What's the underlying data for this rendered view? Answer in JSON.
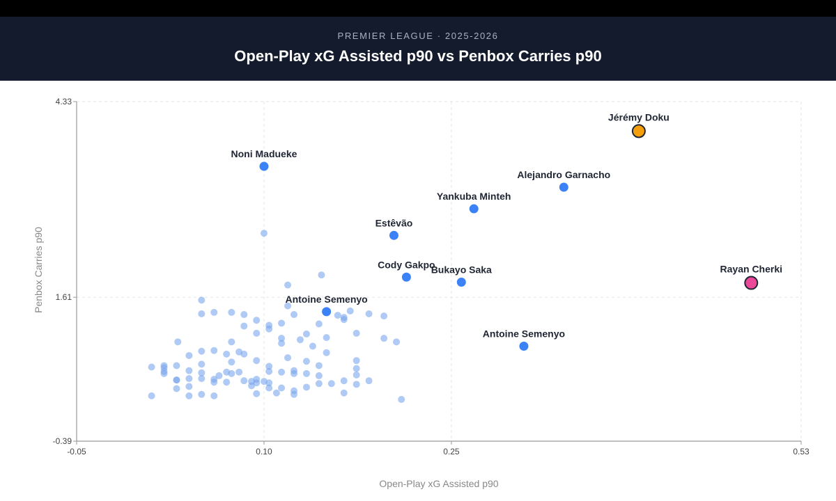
{
  "header": {
    "subtitle": "PREMIER LEAGUE · 2025-2026",
    "title": "Open-Play xG Assisted p90 vs Penbox Carries p90"
  },
  "chart_data": {
    "type": "scatter",
    "title": "Open-Play xG Assisted p90 vs Penbox Carries p90",
    "subtitle": "PREMIER LEAGUE · 2025-2026",
    "xlabel": "Open-Play xG Assisted p90",
    "ylabel": "Penbox Carries p90",
    "xlim": [
      -0.05,
      0.53
    ],
    "ylim": [
      -0.39,
      4.33
    ],
    "xticks": [
      -0.05,
      0.1,
      0.25,
      0.53
    ],
    "xtick_labels": [
      "-0.05",
      "0.10",
      "0.25",
      "0.53"
    ],
    "yticks": [
      -0.39,
      1.61,
      4.33
    ],
    "ytick_labels": [
      "-0.39",
      "1.61",
      "4.33"
    ],
    "grid": true,
    "colors": {
      "background_point": "#7aa7ec",
      "highlight_point": "#3b82f6",
      "doku": "#f59e0b",
      "cherki": "#ec4899",
      "grid": "#e6e6e6",
      "axis": "#999999"
    },
    "highlighted": [
      {
        "name": "Jérémy Doku",
        "x": 0.4,
        "y": 3.92,
        "color": "#f59e0b",
        "outlined": true
      },
      {
        "name": "Noni Madueke",
        "x": 0.1,
        "y": 3.43
      },
      {
        "name": "Alejandro Garnacho",
        "x": 0.34,
        "y": 3.14
      },
      {
        "name": "Yankuba Minteh",
        "x": 0.268,
        "y": 2.84
      },
      {
        "name": "Estêvão",
        "x": 0.204,
        "y": 2.47
      },
      {
        "name": "Cody Gakpo",
        "x": 0.214,
        "y": 1.89
      },
      {
        "name": "Bukayo Saka",
        "x": 0.258,
        "y": 1.82
      },
      {
        "name": "Rayan Cherki",
        "x": 0.49,
        "y": 1.81,
        "color": "#ec4899",
        "outlined": true
      },
      {
        "name": "Antoine Semenyo",
        "x": 0.15,
        "y": 1.41
      },
      {
        "name": "Antoine Semenyo",
        "x": 0.308,
        "y": 0.93
      }
    ],
    "others": [
      [
        0.1,
        2.5
      ],
      [
        0.146,
        1.92
      ],
      [
        0.119,
        1.78
      ],
      [
        0.05,
        1.57
      ],
      [
        0.05,
        1.38
      ],
      [
        0.06,
        1.4
      ],
      [
        0.169,
        1.42
      ],
      [
        0.196,
        1.35
      ],
      [
        0.074,
        1.4
      ],
      [
        0.084,
        1.37
      ],
      [
        0.094,
        1.29
      ],
      [
        0.104,
        1.22
      ],
      [
        0.114,
        1.25
      ],
      [
        0.124,
        1.37
      ],
      [
        0.144,
        1.24
      ],
      [
        0.159,
        1.36
      ],
      [
        0.184,
        1.38
      ],
      [
        0.104,
        1.17
      ],
      [
        0.114,
        1.04
      ],
      [
        0.119,
        1.49
      ],
      [
        0.134,
        1.1
      ],
      [
        0.15,
        1.05
      ],
      [
        0.174,
        1.11
      ],
      [
        0.196,
        1.04
      ],
      [
        0.206,
        0.99
      ],
      [
        0.084,
        1.21
      ],
      [
        0.094,
        1.11
      ],
      [
        0.074,
        0.99
      ],
      [
        0.114,
        0.97
      ],
      [
        0.129,
        1.02
      ],
      [
        0.139,
        0.93
      ],
      [
        0.164,
        1.33
      ],
      [
        0.164,
        1.3
      ],
      [
        0.15,
        0.84
      ],
      [
        0.031,
        0.99
      ],
      [
        0.05,
        0.68
      ],
      [
        0.04,
        0.8
      ],
      [
        0.05,
        0.86
      ],
      [
        0.06,
        0.87
      ],
      [
        0.07,
        0.82
      ],
      [
        0.08,
        0.85
      ],
      [
        0.084,
        0.82
      ],
      [
        0.074,
        0.71
      ],
      [
        0.094,
        0.73
      ],
      [
        0.104,
        0.65
      ],
      [
        0.119,
        0.77
      ],
      [
        0.134,
        0.72
      ],
      [
        0.144,
        0.66
      ],
      [
        0.174,
        0.73
      ],
      [
        0.174,
        0.62
      ],
      [
        0.174,
        0.53
      ],
      [
        0.164,
        0.28
      ],
      [
        0.144,
        0.52
      ],
      [
        0.134,
        0.55
      ],
      [
        0.124,
        0.59
      ],
      [
        0.124,
        0.55
      ],
      [
        0.114,
        0.57
      ],
      [
        0.104,
        0.58
      ],
      [
        0.094,
        0.42
      ],
      [
        0.084,
        0.45
      ],
      [
        0.094,
        0.47
      ],
      [
        0.074,
        0.55
      ],
      [
        0.064,
        0.52
      ],
      [
        0.06,
        0.47
      ],
      [
        0.05,
        0.48
      ],
      [
        0.05,
        0.56
      ],
      [
        0.03,
        0.66
      ],
      [
        0.01,
        0.64
      ],
      [
        0.02,
        0.66
      ],
      [
        0.02,
        0.63
      ],
      [
        0.02,
        0.58
      ],
      [
        0.02,
        0.55
      ],
      [
        0.04,
        0.59
      ],
      [
        0.04,
        0.48
      ],
      [
        0.04,
        0.37
      ],
      [
        0.03,
        0.46
      ],
      [
        0.03,
        0.46
      ],
      [
        0.03,
        0.34
      ],
      [
        0.01,
        0.24
      ],
      [
        0.05,
        0.26
      ],
      [
        0.04,
        0.24
      ],
      [
        0.06,
        0.24
      ],
      [
        0.06,
        0.43
      ],
      [
        0.07,
        0.57
      ],
      [
        0.07,
        0.43
      ],
      [
        0.08,
        0.57
      ],
      [
        0.09,
        0.44
      ],
      [
        0.09,
        0.38
      ],
      [
        0.094,
        0.27
      ],
      [
        0.104,
        0.35
      ],
      [
        0.104,
        0.42
      ],
      [
        0.1,
        0.44
      ],
      [
        0.11,
        0.28
      ],
      [
        0.114,
        0.35
      ],
      [
        0.124,
        0.31
      ],
      [
        0.124,
        0.26
      ],
      [
        0.134,
        0.36
      ],
      [
        0.144,
        0.41
      ],
      [
        0.154,
        0.41
      ],
      [
        0.164,
        0.45
      ],
      [
        0.174,
        0.4
      ],
      [
        0.184,
        0.45
      ],
      [
        0.21,
        0.19
      ]
    ]
  }
}
